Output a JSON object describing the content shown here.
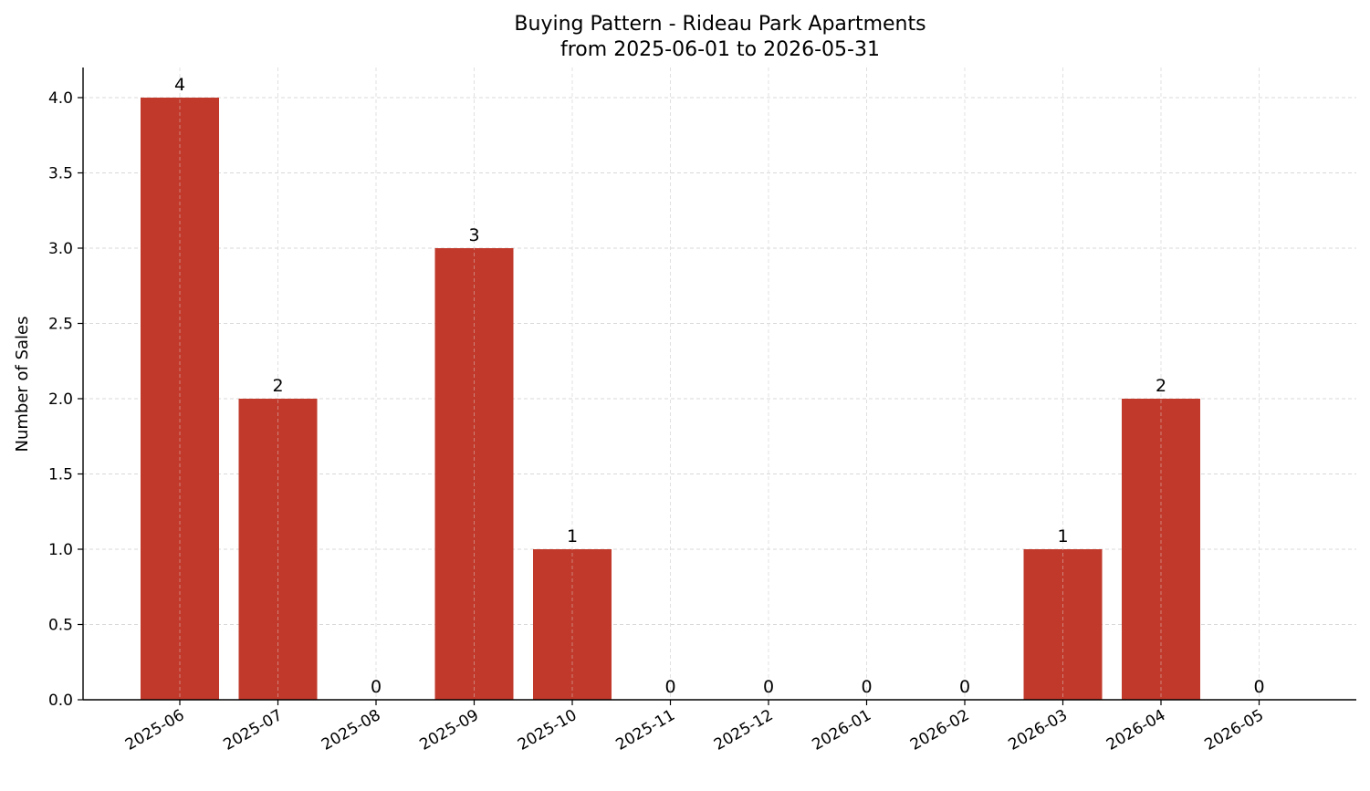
{
  "chart_data": {
    "type": "bar",
    "title": "Buying Pattern - Rideau Park Apartments",
    "subtitle": "from 2025-06-01 to 2026-05-31",
    "xlabel": "",
    "ylabel": "Number of Sales",
    "categories": [
      "2025-06",
      "2025-07",
      "2025-08",
      "2025-09",
      "2025-10",
      "2025-11",
      "2025-12",
      "2026-01",
      "2026-02",
      "2026-03",
      "2026-04",
      "2026-05"
    ],
    "values": [
      4,
      2,
      0,
      3,
      1,
      0,
      0,
      0,
      0,
      1,
      2,
      0
    ],
    "data_labels": [
      "4",
      "2",
      "0",
      "3",
      "1",
      "0",
      "0",
      "0",
      "0",
      "1",
      "2",
      "0"
    ],
    "ylim": [
      0,
      4.2
    ],
    "yticks": [
      0.0,
      0.5,
      1.0,
      1.5,
      2.0,
      2.5,
      3.0,
      3.5,
      4.0
    ],
    "ytick_labels": [
      "0.0",
      "0.5",
      "1.0",
      "1.5",
      "2.0",
      "2.5",
      "3.0",
      "3.5",
      "4.0"
    ],
    "grid": true,
    "legend": "none",
    "bar_color": "#c0392b",
    "grid_color": "#d9d9d9"
  }
}
